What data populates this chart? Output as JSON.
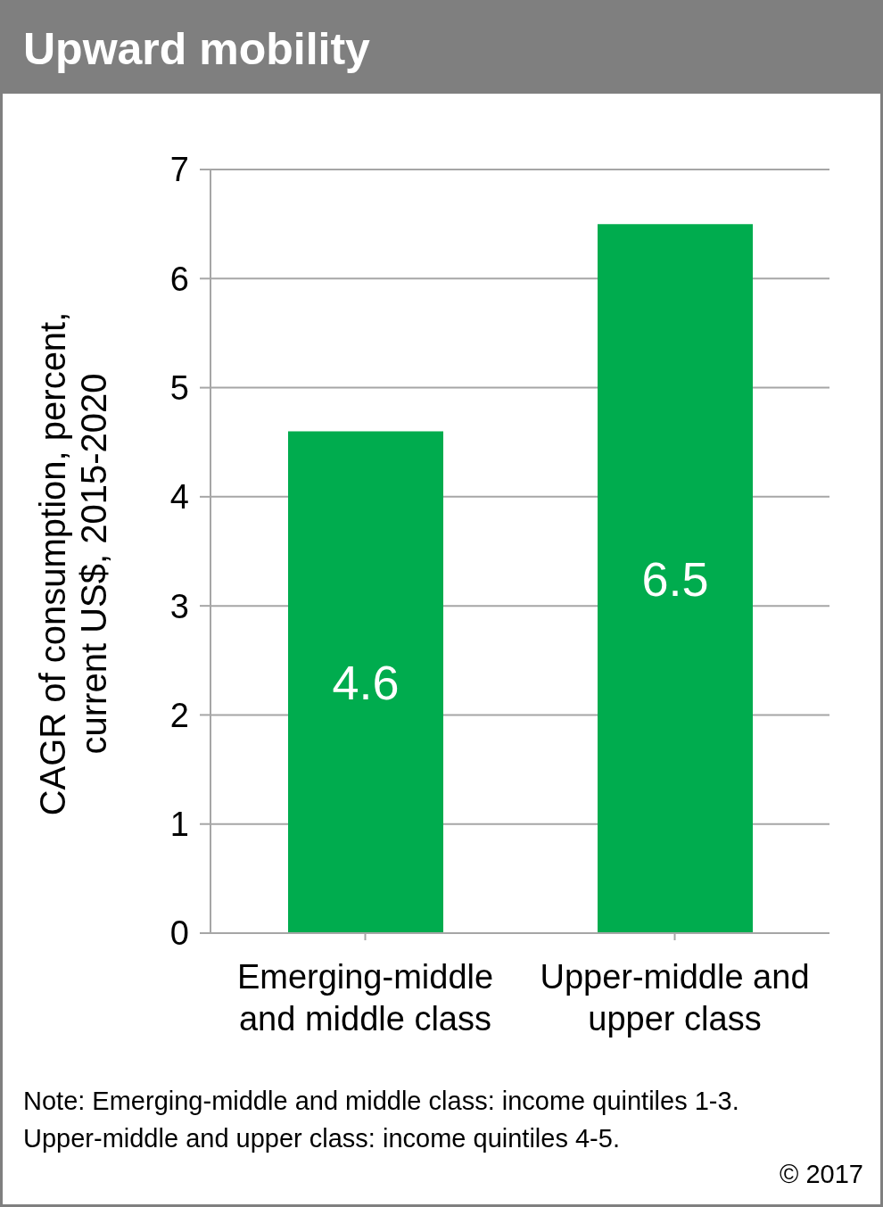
{
  "chart_data": {
    "type": "bar",
    "title": "Upward mobility",
    "ylabel": "CAGR of consumption, percent, current US$, 2015-2020",
    "categories": [
      "Emerging-middle and middle class",
      "Upper-middle and upper class"
    ],
    "values": [
      4.6,
      6.5
    ],
    "color": "#00ac4e",
    "data_labels": true,
    "ylim": [
      0,
      7
    ],
    "yticks": [
      0,
      1,
      2,
      3,
      4,
      5,
      6,
      7
    ],
    "grid": "y",
    "annotations": [
      "Note: Emerging-middle and middle class: income quintiles 1-3.",
      "Upper-middle and upper class: income quintiles 4-5.",
      "© 2017"
    ]
  }
}
